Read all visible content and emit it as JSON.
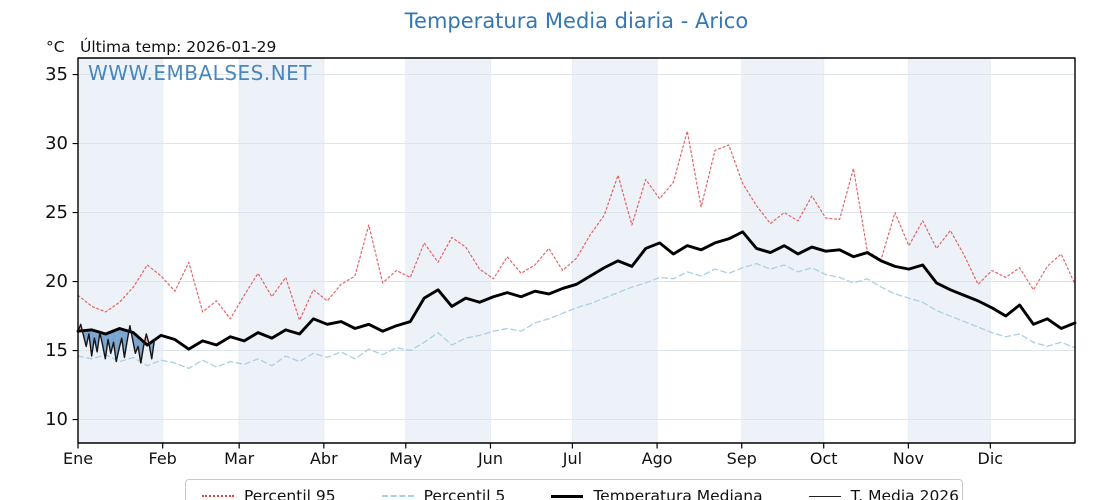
{
  "header": {
    "title": "Temperatura Media diaria - Arico",
    "units": "°C",
    "last_temp_note": "Última temp: 2026-01-29",
    "watermark": "WWW.EMBALSES.NET"
  },
  "legend": {
    "items": [
      {
        "label": "Percentil 95"
      },
      {
        "label": "Percentil 5"
      },
      {
        "label": "Temperatura Mediana"
      },
      {
        "label": "T. Media 2026"
      }
    ]
  },
  "colors": {
    "accent_blue": "#3377b4",
    "p95_line": "rgba(223,62,62,0.8)",
    "p5_line": "#a9d0e2",
    "median_line": "#000000",
    "t2026_line": "#151515",
    "fill_below_median": "rgba(100,150,198,0.85)",
    "fill_above_median": "rgba(238,164,154,0.9)",
    "month_band": "#edf2f9",
    "gridline": "#dce4ee",
    "vgridline": "#e7edf4",
    "axis": "#000000"
  },
  "chart_data": {
    "type": "line",
    "title": "Temperatura Media diaria - Arico",
    "xlabel": "",
    "ylabel": "°C",
    "ylim": [
      8.3,
      36.2
    ],
    "y_ticks": [
      10,
      15,
      20,
      25,
      30,
      35
    ],
    "x_total_days": 365,
    "month_start_days": [
      0,
      31,
      59,
      90,
      120,
      151,
      181,
      212,
      243,
      273,
      304,
      334
    ],
    "x_tick_labels": [
      "Ene",
      "Feb",
      "Mar",
      "Abr",
      "May",
      "Jun",
      "Jul",
      "Ago",
      "Sep",
      "Oct",
      "Nov",
      "Dic"
    ],
    "shaded_month_indices": [
      0,
      2,
      4,
      6,
      8,
      10
    ],
    "grid": true,
    "legend_position": "bottom",
    "sample_interval_days": 5,
    "series": [
      {
        "name": "Percentil 95",
        "style": "dotted",
        "width": 1.2,
        "values": [
          19.0,
          18.2,
          17.8,
          18.5,
          19.6,
          21.2,
          20.4,
          19.3,
          21.4,
          17.8,
          18.6,
          17.3,
          19.0,
          20.6,
          18.9,
          20.3,
          17.2,
          19.4,
          18.6,
          19.8,
          20.4,
          24.1,
          19.9,
          20.8,
          20.3,
          22.8,
          21.4,
          23.2,
          22.5,
          20.9,
          20.2,
          21.8,
          20.6,
          21.2,
          22.4,
          20.8,
          21.7,
          23.4,
          24.8,
          27.7,
          24.1,
          27.4,
          26.0,
          27.2,
          30.9,
          25.4,
          29.5,
          29.9,
          27.1,
          25.5,
          24.2,
          25.0,
          24.4,
          26.2,
          24.6,
          24.5,
          28.2,
          22.2,
          21.6,
          25.0,
          22.6,
          24.4,
          22.4,
          23.7,
          21.9,
          19.8,
          20.8,
          20.3,
          21.0,
          19.4,
          21.1,
          22.0,
          19.8
        ]
      },
      {
        "name": "Percentil 5",
        "style": "dashed",
        "width": 1.3,
        "values": [
          14.6,
          14.4,
          14.7,
          14.2,
          14.5,
          13.9,
          14.3,
          14.1,
          13.7,
          14.3,
          13.8,
          14.2,
          14.0,
          14.4,
          13.9,
          14.6,
          14.2,
          14.8,
          14.5,
          14.9,
          14.4,
          15.1,
          14.7,
          15.2,
          15.0,
          15.6,
          16.3,
          15.4,
          15.9,
          16.1,
          16.4,
          16.6,
          16.4,
          17.0,
          17.3,
          17.7,
          18.1,
          18.4,
          18.8,
          19.2,
          19.6,
          19.9,
          20.3,
          20.2,
          20.7,
          20.4,
          20.9,
          20.6,
          21.0,
          21.3,
          20.9,
          21.2,
          20.7,
          21.0,
          20.5,
          20.3,
          19.9,
          20.2,
          19.6,
          19.1,
          18.8,
          18.5,
          17.9,
          17.5,
          17.1,
          16.7,
          16.3,
          16.0,
          16.2,
          15.6,
          15.3,
          15.6,
          15.2
        ]
      },
      {
        "name": "Temperatura Mediana",
        "style": "solid-thick",
        "width": 2.9,
        "values": [
          16.4,
          16.5,
          16.2,
          16.6,
          16.3,
          15.4,
          16.1,
          15.8,
          15.1,
          15.7,
          15.4,
          16.0,
          15.7,
          16.3,
          15.9,
          16.5,
          16.2,
          17.3,
          16.9,
          17.1,
          16.6,
          16.9,
          16.4,
          16.8,
          17.1,
          18.8,
          19.4,
          18.2,
          18.8,
          18.5,
          18.9,
          19.2,
          18.9,
          19.3,
          19.1,
          19.5,
          19.8,
          20.4,
          21.0,
          21.5,
          21.1,
          22.4,
          22.8,
          22.0,
          22.6,
          22.3,
          22.8,
          23.1,
          23.6,
          22.4,
          22.1,
          22.6,
          22.0,
          22.5,
          22.2,
          22.3,
          21.8,
          22.1,
          21.5,
          21.1,
          20.9,
          21.2,
          19.9,
          19.4,
          19.0,
          18.6,
          18.1,
          17.5,
          18.3,
          16.9,
          17.3,
          16.6,
          17.0
        ]
      },
      {
        "name": "T. Media 2026",
        "style": "solid-thin",
        "width": 1.4,
        "daily": true,
        "start_day": 0,
        "values": [
          16.4,
          16.9,
          16.1,
          15.3,
          16.2,
          14.6,
          15.9,
          14.9,
          16.3,
          15.4,
          14.4,
          15.8,
          14.8,
          15.6,
          14.2,
          15.1,
          15.9,
          14.5,
          15.7,
          16.8,
          15.8,
          14.8,
          15.3,
          14.1,
          15.3,
          16.2,
          15.5,
          14.4,
          15.8
        ]
      }
    ],
    "fills": {
      "description": "Area between T. Media 2026 and Temperatura Mediana: blue where 2026 below median, pink where above",
      "below": "blue",
      "above": "pink"
    }
  }
}
